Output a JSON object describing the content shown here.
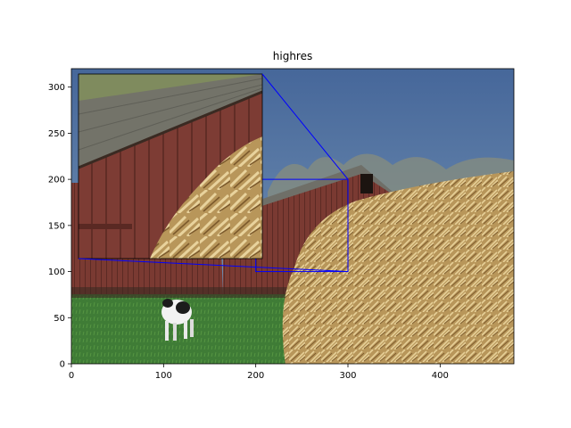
{
  "chart_data": {
    "type": "image",
    "title": "highres",
    "xlim": [
      0,
      480
    ],
    "ylim": [
      0,
      320
    ],
    "xticks": [
      0,
      100,
      200,
      300,
      400
    ],
    "yticks": [
      0,
      50,
      100,
      150,
      200,
      250,
      300
    ],
    "zoom_region": {
      "x0": 200,
      "x1": 300,
      "y0": 100,
      "y1": 200
    },
    "connector_color": "#0000ff",
    "image_colors": {
      "sky": "#4e6f9c",
      "barn": "#7b3b33",
      "roof": "#6e6e66",
      "hay": "#c8a668",
      "grass": "#3f7c36",
      "cow": "#f2f2f2"
    }
  }
}
